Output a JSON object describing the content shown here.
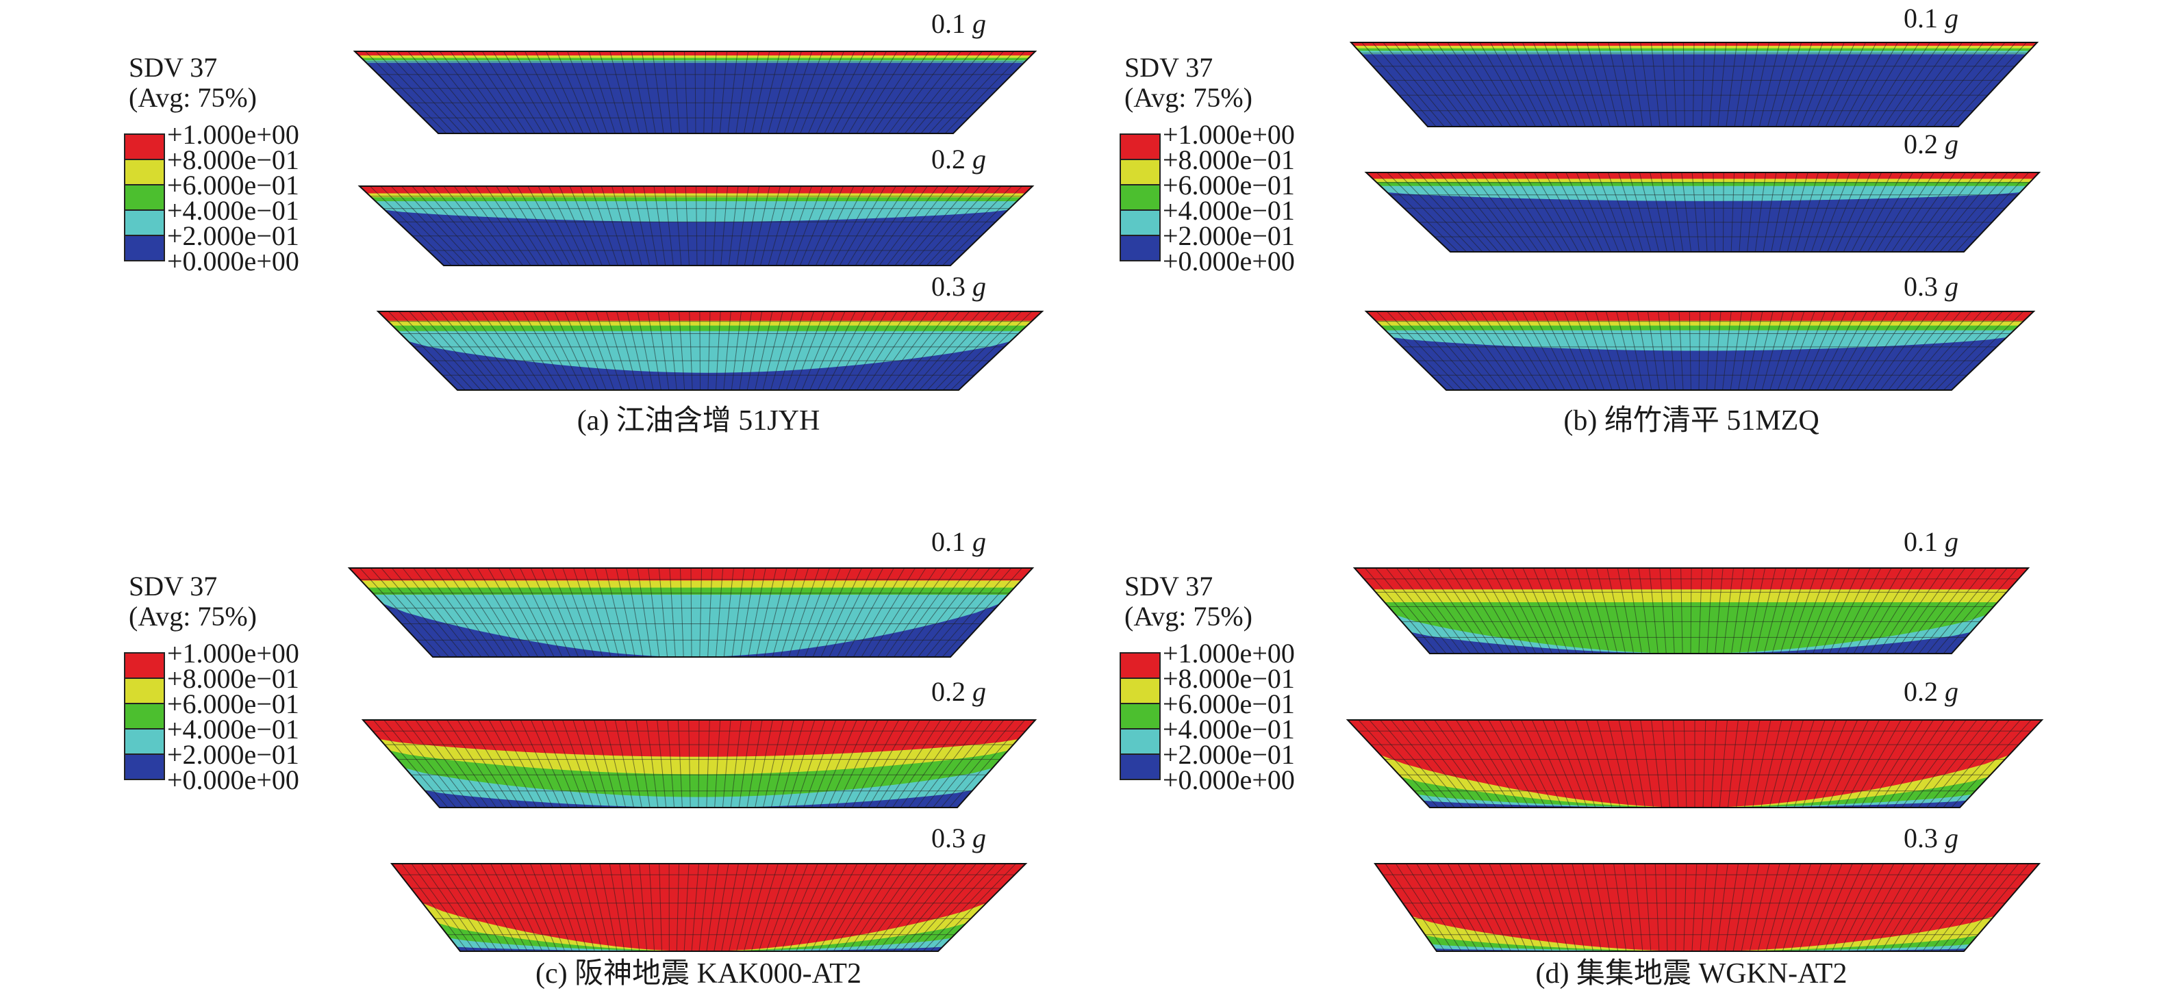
{
  "legend": {
    "title": "SDV 37",
    "subtitle": "(Avg: 75%)",
    "levels": [
      "+1.000e+00",
      "+8.000e−01",
      "+6.000e−01",
      "+4.000e−01",
      "+2.000e−01",
      "+0.000e+00"
    ],
    "colors": [
      "#e11f26",
      "#d8dc2f",
      "#4cbf2f",
      "#5cc8c6",
      "#2a3da1"
    ]
  },
  "panels": [
    {
      "caption": "(a) 江油含增 51JYH",
      "sections": [
        {
          "pga": "0.1",
          "unit": "g",
          "bands": [
            0.05,
            0.08,
            0.11,
            0.14
          ],
          "center_bands": [
            0.05,
            0.08,
            0.11,
            0.14
          ]
        },
        {
          "pga": "0.2",
          "unit": "g",
          "bands": [
            0.09,
            0.14,
            0.19,
            0.3
          ],
          "center_bands": [
            0.09,
            0.14,
            0.19,
            0.45
          ]
        },
        {
          "pga": "0.3",
          "unit": "g",
          "bands": [
            0.12,
            0.18,
            0.25,
            0.38
          ],
          "center_bands": [
            0.12,
            0.18,
            0.25,
            0.78
          ]
        }
      ]
    },
    {
      "caption": "(b) 绵竹清平 51MZQ",
      "sections": [
        {
          "pga": "0.1",
          "unit": "g",
          "bands": [
            0.04,
            0.07,
            0.1,
            0.14
          ],
          "center_bands": [
            0.04,
            0.07,
            0.1,
            0.14
          ]
        },
        {
          "pga": "0.2",
          "unit": "g",
          "bands": [
            0.08,
            0.12,
            0.17,
            0.25
          ],
          "center_bands": [
            0.08,
            0.12,
            0.17,
            0.36
          ]
        },
        {
          "pga": "0.3",
          "unit": "g",
          "bands": [
            0.12,
            0.18,
            0.24,
            0.33
          ],
          "center_bands": [
            0.12,
            0.18,
            0.24,
            0.5
          ]
        }
      ]
    },
    {
      "caption": "(c) 阪神地震 KAK000-AT2",
      "sections": [
        {
          "pga": "0.1",
          "unit": "g",
          "bands": [
            0.14,
            0.22,
            0.3,
            0.4
          ],
          "center_bands": [
            0.14,
            0.22,
            0.3,
            1.0
          ]
        },
        {
          "pga": "0.2",
          "unit": "g",
          "bands": [
            0.22,
            0.35,
            0.55,
            0.8
          ],
          "center_bands": [
            0.42,
            0.62,
            0.88,
            1.0
          ]
        },
        {
          "pga": "0.3",
          "unit": "g",
          "bands": [
            0.45,
            0.68,
            0.85,
            0.95
          ],
          "center_bands": [
            1.0,
            1.0,
            1.0,
            1.0
          ]
        }
      ]
    },
    {
      "caption": "(d) 集集地震 WGKN-AT2",
      "sections": [
        {
          "pga": "0.1",
          "unit": "g",
          "bands": [
            0.25,
            0.4,
            0.55,
            0.75
          ],
          "center_bands": [
            0.25,
            0.4,
            1.0,
            1.0
          ]
        },
        {
          "pga": "0.2",
          "unit": "g",
          "bands": [
            0.4,
            0.65,
            0.85,
            0.92
          ],
          "center_bands": [
            1.0,
            1.0,
            1.0,
            1.0
          ]
        },
        {
          "pga": "0.3",
          "unit": "g",
          "bands": [
            0.6,
            0.82,
            0.92,
            0.97
          ],
          "center_bands": [
            1.0,
            1.0,
            1.0,
            1.0
          ]
        }
      ]
    }
  ]
}
